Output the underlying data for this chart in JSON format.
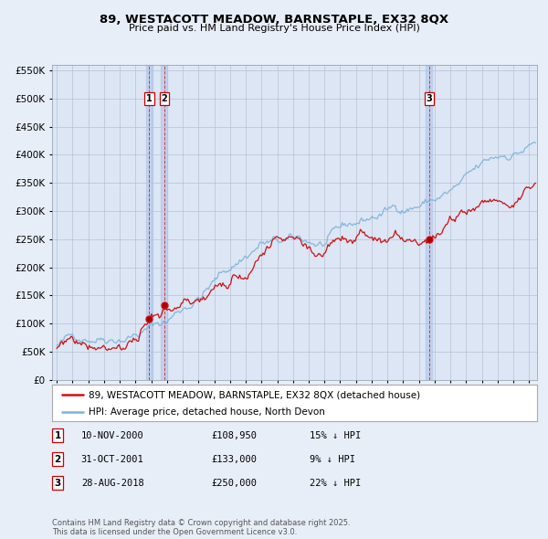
{
  "title1": "89, WESTACOTT MEADOW, BARNSTAPLE, EX32 8QX",
  "title2": "Price paid vs. HM Land Registry's House Price Index (HPI)",
  "background_color": "#e8eef8",
  "plot_bg_color": "#dce6f5",
  "hpi_color": "#7ab3d9",
  "price_color": "#cc1111",
  "dashed_line_color": "#cc2222",
  "legend_entries": [
    "89, WESTACOTT MEADOW, BARNSTAPLE, EX32 8QX (detached house)",
    "HPI: Average price, detached house, North Devon"
  ],
  "table_rows": [
    {
      "label": "1",
      "date": "10-NOV-2000",
      "price": "£108,950",
      "note": "15% ↓ HPI"
    },
    {
      "label": "2",
      "date": "31-OCT-2001",
      "price": "£133,000",
      "note": "9% ↓ HPI"
    },
    {
      "label": "3",
      "date": "28-AUG-2018",
      "price": "£250,000",
      "note": "22% ↓ HPI"
    }
  ],
  "sale_dates": [
    2000.86,
    2001.83,
    2018.65
  ],
  "sale_prices": [
    108950,
    133000,
    250000
  ],
  "sale_labels": [
    "1",
    "2",
    "3"
  ],
  "footnote": "Contains HM Land Registry data © Crown copyright and database right 2025.\nThis data is licensed under the Open Government Licence v3.0.",
  "ylim": [
    0,
    560000
  ],
  "yticks": [
    0,
    50000,
    100000,
    150000,
    200000,
    250000,
    300000,
    350000,
    400000,
    450000,
    500000,
    550000
  ],
  "xlim_start": 1994.7,
  "xlim_end": 2025.5
}
